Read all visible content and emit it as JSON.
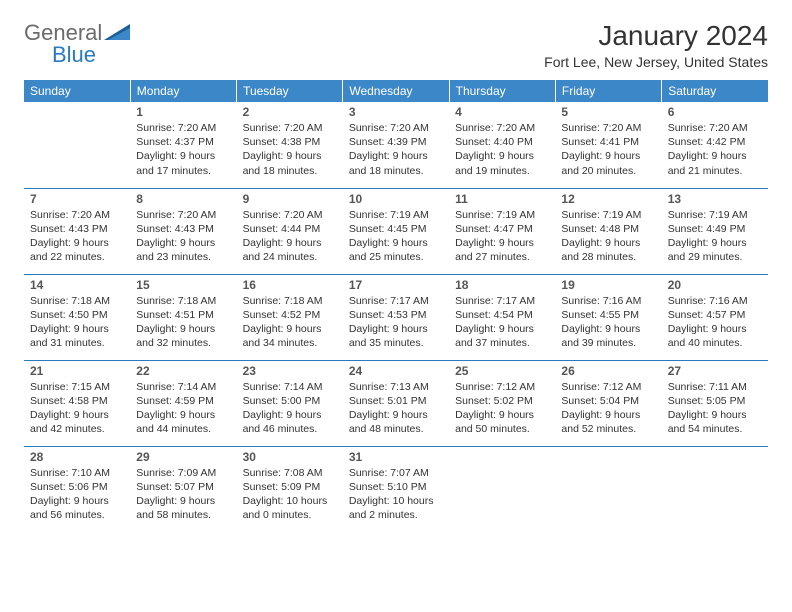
{
  "brand": {
    "part1": "General",
    "part2": "Blue"
  },
  "title": "January 2024",
  "location": "Fort Lee, New Jersey, United States",
  "colors": {
    "header_bg": "#3b87c8",
    "header_text": "#ffffff",
    "rule": "#2a7abf",
    "brand_gray": "#6b6b6b",
    "brand_blue": "#2a7abf",
    "text": "#333333",
    "bg": "#ffffff"
  },
  "weekdays": [
    "Sunday",
    "Monday",
    "Tuesday",
    "Wednesday",
    "Thursday",
    "Friday",
    "Saturday"
  ],
  "first_weekday_index": 1,
  "days": [
    {
      "n": 1,
      "sunrise": "7:20 AM",
      "sunset": "4:37 PM",
      "daylight": "9 hours and 17 minutes."
    },
    {
      "n": 2,
      "sunrise": "7:20 AM",
      "sunset": "4:38 PM",
      "daylight": "9 hours and 18 minutes."
    },
    {
      "n": 3,
      "sunrise": "7:20 AM",
      "sunset": "4:39 PM",
      "daylight": "9 hours and 18 minutes."
    },
    {
      "n": 4,
      "sunrise": "7:20 AM",
      "sunset": "4:40 PM",
      "daylight": "9 hours and 19 minutes."
    },
    {
      "n": 5,
      "sunrise": "7:20 AM",
      "sunset": "4:41 PM",
      "daylight": "9 hours and 20 minutes."
    },
    {
      "n": 6,
      "sunrise": "7:20 AM",
      "sunset": "4:42 PM",
      "daylight": "9 hours and 21 minutes."
    },
    {
      "n": 7,
      "sunrise": "7:20 AM",
      "sunset": "4:43 PM",
      "daylight": "9 hours and 22 minutes."
    },
    {
      "n": 8,
      "sunrise": "7:20 AM",
      "sunset": "4:43 PM",
      "daylight": "9 hours and 23 minutes."
    },
    {
      "n": 9,
      "sunrise": "7:20 AM",
      "sunset": "4:44 PM",
      "daylight": "9 hours and 24 minutes."
    },
    {
      "n": 10,
      "sunrise": "7:19 AM",
      "sunset": "4:45 PM",
      "daylight": "9 hours and 25 minutes."
    },
    {
      "n": 11,
      "sunrise": "7:19 AM",
      "sunset": "4:47 PM",
      "daylight": "9 hours and 27 minutes."
    },
    {
      "n": 12,
      "sunrise": "7:19 AM",
      "sunset": "4:48 PM",
      "daylight": "9 hours and 28 minutes."
    },
    {
      "n": 13,
      "sunrise": "7:19 AM",
      "sunset": "4:49 PM",
      "daylight": "9 hours and 29 minutes."
    },
    {
      "n": 14,
      "sunrise": "7:18 AM",
      "sunset": "4:50 PM",
      "daylight": "9 hours and 31 minutes."
    },
    {
      "n": 15,
      "sunrise": "7:18 AM",
      "sunset": "4:51 PM",
      "daylight": "9 hours and 32 minutes."
    },
    {
      "n": 16,
      "sunrise": "7:18 AM",
      "sunset": "4:52 PM",
      "daylight": "9 hours and 34 minutes."
    },
    {
      "n": 17,
      "sunrise": "7:17 AM",
      "sunset": "4:53 PM",
      "daylight": "9 hours and 35 minutes."
    },
    {
      "n": 18,
      "sunrise": "7:17 AM",
      "sunset": "4:54 PM",
      "daylight": "9 hours and 37 minutes."
    },
    {
      "n": 19,
      "sunrise": "7:16 AM",
      "sunset": "4:55 PM",
      "daylight": "9 hours and 39 minutes."
    },
    {
      "n": 20,
      "sunrise": "7:16 AM",
      "sunset": "4:57 PM",
      "daylight": "9 hours and 40 minutes."
    },
    {
      "n": 21,
      "sunrise": "7:15 AM",
      "sunset": "4:58 PM",
      "daylight": "9 hours and 42 minutes."
    },
    {
      "n": 22,
      "sunrise": "7:14 AM",
      "sunset": "4:59 PM",
      "daylight": "9 hours and 44 minutes."
    },
    {
      "n": 23,
      "sunrise": "7:14 AM",
      "sunset": "5:00 PM",
      "daylight": "9 hours and 46 minutes."
    },
    {
      "n": 24,
      "sunrise": "7:13 AM",
      "sunset": "5:01 PM",
      "daylight": "9 hours and 48 minutes."
    },
    {
      "n": 25,
      "sunrise": "7:12 AM",
      "sunset": "5:02 PM",
      "daylight": "9 hours and 50 minutes."
    },
    {
      "n": 26,
      "sunrise": "7:12 AM",
      "sunset": "5:04 PM",
      "daylight": "9 hours and 52 minutes."
    },
    {
      "n": 27,
      "sunrise": "7:11 AM",
      "sunset": "5:05 PM",
      "daylight": "9 hours and 54 minutes."
    },
    {
      "n": 28,
      "sunrise": "7:10 AM",
      "sunset": "5:06 PM",
      "daylight": "9 hours and 56 minutes."
    },
    {
      "n": 29,
      "sunrise": "7:09 AM",
      "sunset": "5:07 PM",
      "daylight": "9 hours and 58 minutes."
    },
    {
      "n": 30,
      "sunrise": "7:08 AM",
      "sunset": "5:09 PM",
      "daylight": "10 hours and 0 minutes."
    },
    {
      "n": 31,
      "sunrise": "7:07 AM",
      "sunset": "5:10 PM",
      "daylight": "10 hours and 2 minutes."
    }
  ],
  "labels": {
    "sunrise": "Sunrise:",
    "sunset": "Sunset:",
    "daylight": "Daylight:"
  }
}
